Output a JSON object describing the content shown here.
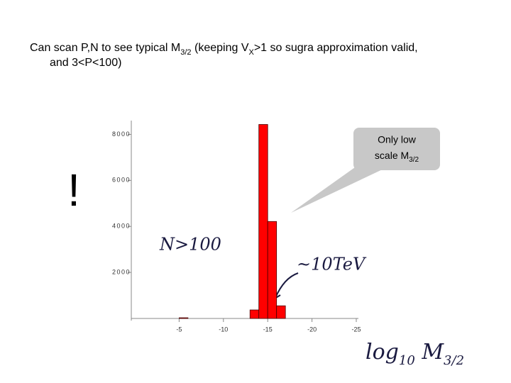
{
  "chart_data": {
    "type": "histogram",
    "title_parts": [
      "Can scan P,N to see typical M",
      "3/2",
      " (keeping V",
      "X",
      ">1 so sugra approximation valid,",
      "and 3<P<100)"
    ],
    "annotations": [
      "!",
      "Only low",
      "scale M",
      "3/2",
      "N>100",
      "~10TeV"
    ],
    "x_label_parts": [
      "log",
      "10",
      " M",
      "3/2"
    ],
    "bins": [
      -5,
      -6,
      -7,
      -8,
      -9,
      -10,
      -11,
      -12,
      -13,
      -14,
      -15,
      -16,
      -17
    ],
    "values": [
      30,
      0,
      0,
      0,
      0,
      0,
      0,
      0,
      370,
      8430,
      4215,
      550
    ],
    "color": "#ff0000",
    "xlim": [
      0,
      -25
    ],
    "xticks": [
      -5,
      -10,
      -15,
      -20,
      -25
    ],
    "ylim": [
      0,
      8600
    ],
    "yticks": [
      2000,
      4000,
      6000,
      8000
    ]
  }
}
